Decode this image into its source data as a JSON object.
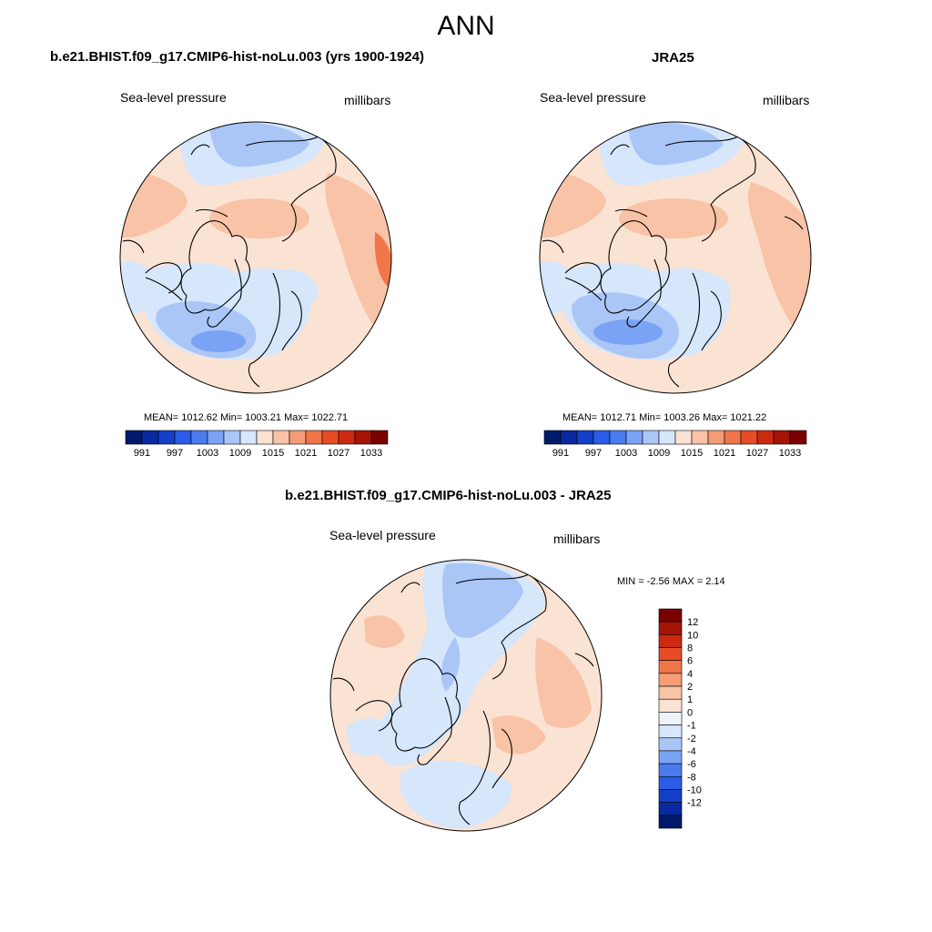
{
  "title": "ANN",
  "panels": [
    {
      "id": "model",
      "title": "b.e21.BHIST.f09_g17.CMIP6-hist-noLu.003 (yrs 1900-1924)",
      "left_label": "Sea-level pressure",
      "right_label": "millibars",
      "stats": "MEAN= 1012.62  Min= 1003.21  Max= 1022.71"
    },
    {
      "id": "obs",
      "title": "JRA25",
      "left_label": "Sea-level pressure",
      "right_label": "millibars",
      "stats": "MEAN= 1012.71  Min= 1003.26  Max= 1021.22"
    },
    {
      "id": "diff",
      "title": "b.e21.BHIST.f09_g17.CMIP6-hist-noLu.003 - JRA25",
      "left_label": "Sea-level pressure",
      "right_label": "millibars",
      "stats": "MIN =  -2.56 MAX =   2.14"
    }
  ],
  "chart_data": [
    {
      "type": "heatmap",
      "projection": "north polar stereographic",
      "variable": "Sea-level pressure",
      "units": "millibars",
      "mean": 1012.62,
      "min": 1003.21,
      "max": 1022.71,
      "colorbar": {
        "orientation": "horizontal",
        "tick_labels": [
          "991",
          "997",
          "1003",
          "1009",
          "1015",
          "1021",
          "1027",
          "1033"
        ],
        "colors": [
          "#001a6b",
          "#0a28a0",
          "#1440c8",
          "#2a5ce6",
          "#4a7cf0",
          "#7aa3f5",
          "#aac6f7",
          "#d6e6fb",
          "#fbe3d4",
          "#f8c3a6",
          "#f59c76",
          "#f0764a",
          "#e84c26",
          "#cc2a10",
          "#a51405",
          "#7a0000"
        ]
      }
    },
    {
      "type": "heatmap",
      "projection": "north polar stereographic",
      "variable": "Sea-level pressure",
      "units": "millibars",
      "mean": 1012.71,
      "min": 1003.26,
      "max": 1021.22,
      "colorbar": {
        "orientation": "horizontal",
        "tick_labels": [
          "991",
          "997",
          "1003",
          "1009",
          "1015",
          "1021",
          "1027",
          "1033"
        ],
        "colors": [
          "#001a6b",
          "#0a28a0",
          "#1440c8",
          "#2a5ce6",
          "#4a7cf0",
          "#7aa3f5",
          "#aac6f7",
          "#d6e6fb",
          "#fbe3d4",
          "#f8c3a6",
          "#f59c76",
          "#f0764a",
          "#e84c26",
          "#cc2a10",
          "#a51405",
          "#7a0000"
        ]
      }
    },
    {
      "type": "heatmap",
      "projection": "north polar stereographic",
      "variable": "Sea-level pressure",
      "units": "millibars",
      "min": -2.56,
      "max": 2.14,
      "colorbar": {
        "orientation": "vertical",
        "tick_labels": [
          "12",
          "10",
          "8",
          "6",
          "4",
          "2",
          "1",
          "0",
          "-1",
          "-2",
          "-4",
          "-6",
          "-8",
          "-10",
          "-12"
        ],
        "colors": [
          "#7a0000",
          "#a51405",
          "#cc2a10",
          "#e84c26",
          "#f0764a",
          "#f59c76",
          "#f8c3a6",
          "#fbe3d4",
          "#eef3fb",
          "#d6e6fb",
          "#aac6f7",
          "#7aa3f5",
          "#4a7cf0",
          "#2a5ce6",
          "#1440c8",
          "#0a28a0",
          "#001a6b"
        ]
      }
    }
  ]
}
